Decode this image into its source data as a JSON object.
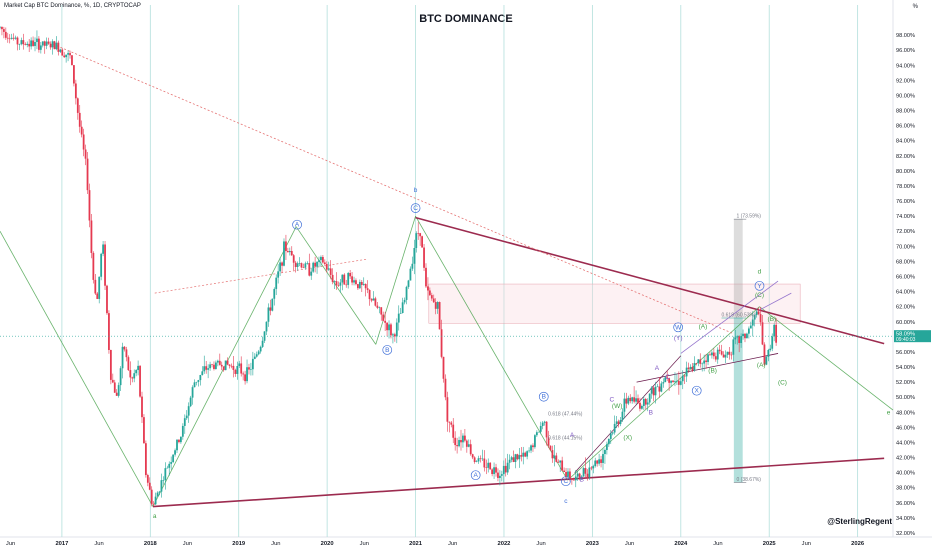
{
  "header": {
    "symbol_text": "Market Cap BTC Dominance, %, 1D, CRYPTOCAP",
    "title": "BTC DOMINANCE",
    "unit": "%",
    "credit": "@SterlingRegent"
  },
  "colors": {
    "candle_up": "#26a69a",
    "candle_down": "#e53950",
    "triangle_line": "#9c2b4f",
    "wave_line": "#43a047",
    "wave_label": "#3f6fd8",
    "axis_text": "#131722",
    "grid_vertical": "#b2dfdb"
  },
  "chart_data": {
    "type": "candlestick",
    "title": "BTC DOMINANCE",
    "xlabel": "",
    "ylabel": "%",
    "y_range": [
      32,
      100
    ],
    "x_range": [
      2016.3,
      2026.4
    ],
    "y_ticks": [
      "98.00%",
      "96.00%",
      "94.00%",
      "92.00%",
      "90.00%",
      "88.00%",
      "86.00%",
      "84.00%",
      "82.00%",
      "80.00%",
      "78.00%",
      "76.00%",
      "74.00%",
      "72.00%",
      "70.00%",
      "68.00%",
      "66.00%",
      "64.00%",
      "62.00%",
      "60.00%",
      "58.00%",
      "56.00%",
      "54.00%",
      "52.00%",
      "50.00%",
      "48.00%",
      "46.00%",
      "44.00%",
      "42.00%",
      "40.00%",
      "38.00%",
      "36.00%",
      "34.00%",
      "32.00%"
    ],
    "y_tick_values": [
      98,
      96,
      94,
      92,
      90,
      88,
      86,
      84,
      82,
      80,
      78,
      76,
      74,
      72,
      70,
      68,
      66,
      64,
      62,
      60,
      58,
      56,
      54,
      52,
      50,
      48,
      46,
      44,
      42,
      40,
      38,
      36,
      34,
      32
    ],
    "x_ticks": [
      {
        "label": "Jun",
        "x": 2016.42
      },
      {
        "label": "2017",
        "x": 2017.0
      },
      {
        "label": "Jun",
        "x": 2017.42
      },
      {
        "label": "2018",
        "x": 2018.0
      },
      {
        "label": "Jun",
        "x": 2018.42
      },
      {
        "label": "2019",
        "x": 2019.0
      },
      {
        "label": "Jun",
        "x": 2019.42
      },
      {
        "label": "2020",
        "x": 2020.0
      },
      {
        "label": "Jun",
        "x": 2020.42
      },
      {
        "label": "2021",
        "x": 2021.0
      },
      {
        "label": "Jun",
        "x": 2021.42
      },
      {
        "label": "2022",
        "x": 2022.0
      },
      {
        "label": "Jun",
        "x": 2022.42
      },
      {
        "label": "2023",
        "x": 2023.0
      },
      {
        "label": "Jun",
        "x": 2023.42
      },
      {
        "label": "2024",
        "x": 2024.0
      },
      {
        "label": "Jun",
        "x": 2024.42
      },
      {
        "label": "2025",
        "x": 2025.0
      },
      {
        "label": "Jun",
        "x": 2025.42
      },
      {
        "label": "2026",
        "x": 2026.0
      }
    ],
    "current_price": {
      "value": 58.09,
      "label": "58.09%",
      "sub_label": "09:40:03"
    },
    "price_path": [
      [
        2016.3,
        99.0
      ],
      [
        2016.5,
        97.0
      ],
      [
        2016.7,
        96.8
      ],
      [
        2016.95,
        96.5
      ],
      [
        2017.1,
        95.0
      ],
      [
        2017.2,
        86.0
      ],
      [
        2017.28,
        80.0
      ],
      [
        2017.35,
        66.0
      ],
      [
        2017.4,
        63.0
      ],
      [
        2017.46,
        71.0
      ],
      [
        2017.55,
        53.0
      ],
      [
        2017.62,
        50.0
      ],
      [
        2017.7,
        57.0
      ],
      [
        2017.78,
        52.0
      ],
      [
        2017.86,
        54.0
      ],
      [
        2017.95,
        40.0
      ],
      [
        2018.03,
        35.5
      ],
      [
        2018.1,
        38.0
      ],
      [
        2018.2,
        41.0
      ],
      [
        2018.35,
        45.0
      ],
      [
        2018.5,
        52.0
      ],
      [
        2018.65,
        54.0
      ],
      [
        2018.8,
        54.5
      ],
      [
        2018.95,
        54.0
      ],
      [
        2019.1,
        53.0
      ],
      [
        2019.25,
        57.0
      ],
      [
        2019.4,
        64.0
      ],
      [
        2019.52,
        70.0
      ],
      [
        2019.65,
        68.0
      ],
      [
        2019.8,
        67.0
      ],
      [
        2019.95,
        68.0
      ],
      [
        2020.1,
        65.0
      ],
      [
        2020.25,
        66.0
      ],
      [
        2020.45,
        64.0
      ],
      [
        2020.6,
        61.0
      ],
      [
        2020.75,
        58.0
      ],
      [
        2020.88,
        63.0
      ],
      [
        2021.0,
        71.0
      ],
      [
        2021.05,
        72.5
      ],
      [
        2021.12,
        64.0
      ],
      [
        2021.25,
        62.0
      ],
      [
        2021.35,
        48.0
      ],
      [
        2021.45,
        44.0
      ],
      [
        2021.55,
        45.0
      ],
      [
        2021.65,
        42.0
      ],
      [
        2021.8,
        41.0
      ],
      [
        2021.95,
        40.0
      ],
      [
        2022.1,
        42.0
      ],
      [
        2022.25,
        42.0
      ],
      [
        2022.45,
        47.0
      ],
      [
        2022.55,
        42.0
      ],
      [
        2022.7,
        40.0
      ],
      [
        2022.8,
        39.0
      ],
      [
        2022.95,
        40.5
      ],
      [
        2023.1,
        42.0
      ],
      [
        2023.2,
        45.0
      ],
      [
        2023.3,
        47.0
      ],
      [
        2023.4,
        50.0
      ],
      [
        2023.55,
        49.0
      ],
      [
        2023.7,
        51.0
      ],
      [
        2023.85,
        53.0
      ],
      [
        2023.95,
        52.0
      ],
      [
        2024.1,
        53.5
      ],
      [
        2024.25,
        55.0
      ],
      [
        2024.4,
        56.0
      ],
      [
        2024.5,
        55.5
      ],
      [
        2024.6,
        57.0
      ],
      [
        2024.75,
        58.5
      ],
      [
        2024.88,
        61.5
      ],
      [
        2024.95,
        54.0
      ],
      [
        2025.05,
        59.0
      ],
      [
        2025.08,
        58.1
      ]
    ],
    "annotations": {
      "wave_labels": [
        {
          "text": "a",
          "x": 2018.05,
          "y": 34.0,
          "circled": false,
          "color": "green"
        },
        {
          "text": "A",
          "x": 2019.66,
          "y": 72.6,
          "circled": true,
          "color": "blue"
        },
        {
          "text": "B",
          "x": 2020.68,
          "y": 56.0,
          "circled": true,
          "color": "blue"
        },
        {
          "text": "b",
          "x": 2021.0,
          "y": 77.2,
          "circled": false,
          "color": "blue"
        },
        {
          "text": "C",
          "x": 2021.0,
          "y": 74.8,
          "circled": true,
          "color": "blue"
        },
        {
          "text": "A",
          "x": 2021.68,
          "y": 39.4,
          "circled": true,
          "color": "blue"
        },
        {
          "text": "B",
          "x": 2022.45,
          "y": 49.8,
          "circled": true,
          "color": "blue"
        },
        {
          "text": "C",
          "x": 2022.7,
          "y": 38.6,
          "circled": true,
          "color": "blue"
        },
        {
          "text": "c",
          "x": 2022.7,
          "y": 36.0,
          "circled": false,
          "color": "blue"
        },
        {
          "text": "B",
          "x": 2022.88,
          "y": 38.8,
          "circled": false,
          "color": "purple"
        },
        {
          "text": "A",
          "x": 2022.77,
          "y": 44.7,
          "circled": false,
          "color": "purple"
        },
        {
          "text": "C",
          "x": 2023.22,
          "y": 49.4,
          "circled": false,
          "color": "purple"
        },
        {
          "text": "(W)",
          "x": 2023.28,
          "y": 48.6,
          "circled": false,
          "color": "green"
        },
        {
          "text": "(X)",
          "x": 2023.4,
          "y": 44.4,
          "circled": false,
          "color": "green"
        },
        {
          "text": "B",
          "x": 2023.66,
          "y": 47.7,
          "circled": false,
          "color": "purple"
        },
        {
          "text": "A",
          "x": 2023.73,
          "y": 53.6,
          "circled": false,
          "color": "purple"
        },
        {
          "text": "C",
          "x": 2023.85,
          "y": 52.4,
          "circled": false,
          "color": "purple"
        },
        {
          "text": "W",
          "x": 2023.97,
          "y": 59.0,
          "circled": true,
          "color": "blue"
        },
        {
          "text": "(Y)",
          "x": 2023.97,
          "y": 57.6,
          "circled": false,
          "color": "purple"
        },
        {
          "text": "X",
          "x": 2024.18,
          "y": 50.6,
          "circled": true,
          "color": "blue"
        },
        {
          "text": "(A)",
          "x": 2024.25,
          "y": 59.1,
          "circled": false,
          "color": "green"
        },
        {
          "text": "(B)",
          "x": 2024.36,
          "y": 53.3,
          "circled": false,
          "color": "green"
        },
        {
          "text": "d",
          "x": 2024.89,
          "y": 66.4,
          "circled": false,
          "color": "green"
        },
        {
          "text": "Y",
          "x": 2024.89,
          "y": 64.5,
          "circled": true,
          "color": "blue"
        },
        {
          "text": "(C)",
          "x": 2024.89,
          "y": 63.3,
          "circled": false,
          "color": "green"
        },
        {
          "text": "(B)",
          "x": 2025.03,
          "y": 60.1,
          "circled": false,
          "color": "green"
        },
        {
          "text": "(A)",
          "x": 2024.91,
          "y": 54.0,
          "circled": false,
          "color": "green"
        },
        {
          "text": "(C)",
          "x": 2025.15,
          "y": 51.7,
          "circled": false,
          "color": "green"
        },
        {
          "text": "e",
          "x": 2026.35,
          "y": 47.7,
          "circled": false,
          "color": "green"
        }
      ],
      "fib_labels": [
        {
          "text": "1 (73.59%)",
          "x": 2024.63,
          "y": 73.6
        },
        {
          "text": "0.618 (60.53%)",
          "x": 2024.46,
          "y": 60.5
        },
        {
          "text": "0 (38.67%)",
          "x": 2024.63,
          "y": 38.7
        },
        {
          "text": "0.618 (47.44%)",
          "x": 2022.5,
          "y": 47.4
        },
        {
          "text": "0.618 (44.15%)",
          "x": 2022.5,
          "y": 44.2
        }
      ]
    },
    "trendlines": {
      "triangle_upper": [
        [
          2021.0,
          73.8
        ],
        [
          2026.3,
          57.1
        ]
      ],
      "triangle_lower": [
        [
          2018.03,
          35.5
        ],
        [
          2026.3,
          41.9
        ]
      ],
      "dotted_resistance": [
        [
          2016.9,
          96.8
        ],
        [
          2024.6,
          58.4
        ]
      ],
      "dotted_mid": [
        [
          2018.05,
          63.8
        ],
        [
          2020.45,
          68.3
        ]
      ]
    },
    "grid": {
      "vertical_years": true,
      "horizontal": false
    },
    "legend": "none"
  }
}
